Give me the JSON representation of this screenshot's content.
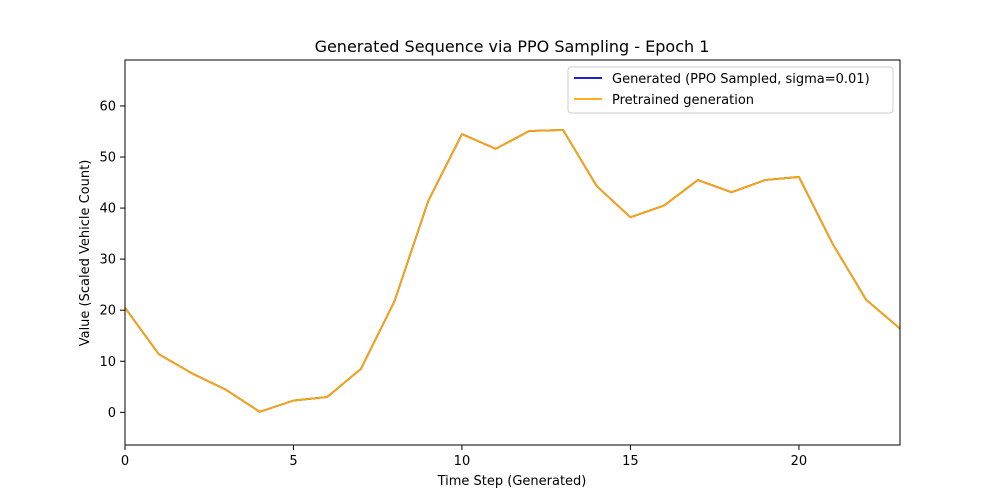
{
  "chart_data": {
    "type": "line",
    "title": "Generated Sequence via PPO Sampling - Epoch 1",
    "xlabel": "Time Step (Generated)",
    "ylabel": "Value (Scaled Vehicle Count)",
    "xlim": [
      0,
      23
    ],
    "ylim": [
      -6.4,
      69
    ],
    "xticks": [
      0,
      5,
      10,
      15,
      20
    ],
    "yticks": [
      0,
      10,
      20,
      30,
      40,
      50,
      60
    ],
    "grid": false,
    "legend_position": "top-right",
    "x": [
      0,
      1,
      2,
      3,
      4,
      5,
      6,
      7,
      8,
      9,
      10,
      11,
      12,
      13,
      14,
      15,
      16,
      17,
      18,
      19,
      20,
      21,
      22,
      23
    ],
    "series": [
      {
        "name": "Generated (PPO Sampled, sigma=0.01)",
        "color": "#0000cc",
        "values": [
          20.5,
          11.4,
          7.6,
          4.4,
          0.1,
          2.3,
          3.0,
          8.5,
          21.8,
          41.4,
          54.5,
          51.6,
          55.1,
          55.3,
          44.3,
          38.2,
          40.5,
          45.5,
          43.1,
          45.5,
          46.1,
          33.0,
          22.0,
          16.4
        ]
      },
      {
        "name": "Pretrained generation",
        "color": "#ffa500",
        "values": [
          20.5,
          11.4,
          7.6,
          4.4,
          0.1,
          2.3,
          3.0,
          8.5,
          21.8,
          41.4,
          54.5,
          51.6,
          55.1,
          55.3,
          44.3,
          38.2,
          40.5,
          45.5,
          43.1,
          45.5,
          46.1,
          33.0,
          22.0,
          16.4
        ]
      }
    ]
  }
}
